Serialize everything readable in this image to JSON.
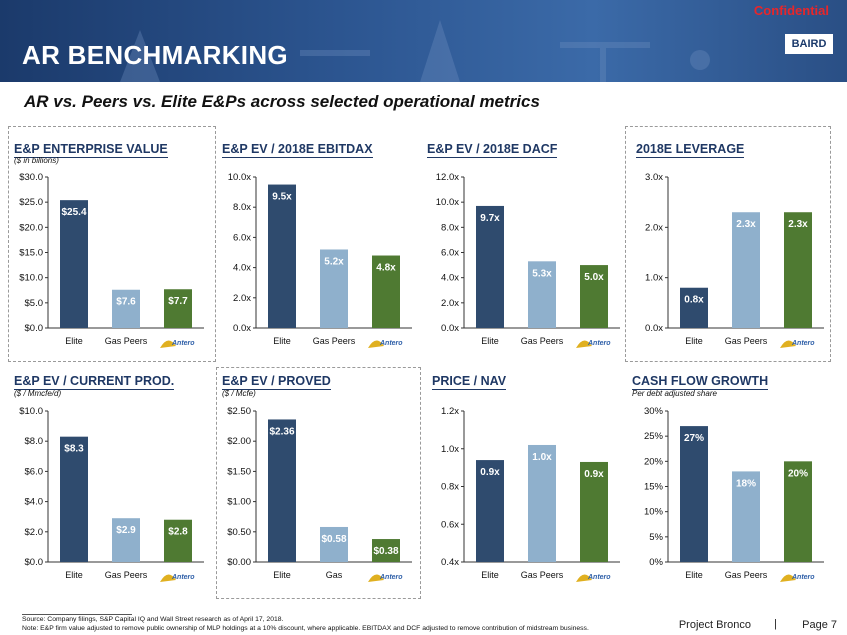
{
  "header": {
    "title": "AR BENCHMARKING",
    "confidential": "Confidential",
    "logo": "BAIRD",
    "subtitle": "AR vs. Peers vs. Elite E&Ps across selected operational metrics"
  },
  "colors": {
    "elite": "#2f4b6e",
    "peers": "#8fb0cc",
    "antero": "#4f7a32",
    "title": "#1f3864"
  },
  "antero_label": "Antero",
  "chart_data": [
    {
      "type": "bar",
      "title": "E&P ENTERPRISE VALUE",
      "subtitle": "($ in billions)",
      "categories": [
        "Elite",
        "Gas Peers",
        "Antero"
      ],
      "values": [
        25.4,
        7.6,
        7.7
      ],
      "value_labels": [
        "$25.4",
        "$7.6",
        "$7.7"
      ],
      "yticks": [
        "$0.0",
        "$5.0",
        "$10.0",
        "$15.0",
        "$20.0",
        "$25.0",
        "$30.0"
      ],
      "ylim": [
        0,
        30
      ]
    },
    {
      "type": "bar",
      "title": "E&P EV / 2018E EBITDAX",
      "subtitle": "",
      "categories": [
        "Elite",
        "Gas Peers",
        "Antero"
      ],
      "values": [
        9.5,
        5.2,
        4.8
      ],
      "value_labels": [
        "9.5x",
        "5.2x",
        "4.8x"
      ],
      "yticks": [
        "0.0x",
        "2.0x",
        "4.0x",
        "6.0x",
        "8.0x",
        "10.0x"
      ],
      "ylim": [
        0,
        10
      ]
    },
    {
      "type": "bar",
      "title": "E&P EV / 2018E DACF",
      "subtitle": "",
      "categories": [
        "Elite",
        "Gas Peers",
        "Antero"
      ],
      "values": [
        9.7,
        5.3,
        5.0
      ],
      "value_labels": [
        "9.7x",
        "5.3x",
        "5.0x"
      ],
      "yticks": [
        "0.0x",
        "2.0x",
        "4.0x",
        "6.0x",
        "8.0x",
        "10.0x",
        "12.0x"
      ],
      "ylim": [
        0,
        12
      ]
    },
    {
      "type": "bar",
      "title": "2018E LEVERAGE",
      "subtitle": "",
      "categories": [
        "Elite",
        "Gas Peers",
        "Antero"
      ],
      "values": [
        0.8,
        2.3,
        2.3
      ],
      "value_labels": [
        "0.8x",
        "2.3x",
        "2.3x"
      ],
      "yticks": [
        "0.0x",
        "1.0x",
        "2.0x",
        "3.0x"
      ],
      "ylim": [
        0,
        3
      ]
    },
    {
      "type": "bar",
      "title": "E&P EV / CURRENT PROD.",
      "subtitle": "($ / Mmcfe/d)",
      "categories": [
        "Elite",
        "Gas Peers",
        "Antero"
      ],
      "values": [
        8.3,
        2.9,
        2.8
      ],
      "value_labels": [
        "$8.3",
        "$2.9",
        "$2.8"
      ],
      "yticks": [
        "$0.0",
        "$2.0",
        "$4.0",
        "$6.0",
        "$8.0",
        "$10.0"
      ],
      "ylim": [
        0,
        10
      ]
    },
    {
      "type": "bar",
      "title": "E&P EV / PROVED",
      "subtitle": "($ / Mcfe)",
      "categories": [
        "Elite",
        "Gas",
        "Antero"
      ],
      "values": [
        2.36,
        0.58,
        0.38
      ],
      "value_labels": [
        "$2.36",
        "$0.58",
        "$0.38"
      ],
      "yticks": [
        "$0.00",
        "$0.50",
        "$1.00",
        "$1.50",
        "$2.00",
        "$2.50"
      ],
      "ylim": [
        0,
        2.5
      ]
    },
    {
      "type": "bar",
      "title": "PRICE / NAV",
      "subtitle": "",
      "categories": [
        "Elite",
        "Gas Peers",
        "Antero"
      ],
      "values": [
        0.94,
        1.02,
        0.93
      ],
      "value_labels": [
        "0.9x",
        "1.0x",
        "0.9x"
      ],
      "yticks": [
        "0.4x",
        "0.6x",
        "0.8x",
        "1.0x",
        "1.2x"
      ],
      "ylim": [
        0.4,
        1.2
      ]
    },
    {
      "type": "bar",
      "title": "CASH FLOW GROWTH",
      "subtitle": "Per debt adjusted share",
      "categories": [
        "Elite",
        "Gas Peers",
        "Antero"
      ],
      "values": [
        27,
        18,
        20
      ],
      "value_labels": [
        "27%",
        "18%",
        "20%"
      ],
      "yticks": [
        "0%",
        "5%",
        "10%",
        "15%",
        "20%",
        "25%",
        "30%"
      ],
      "ylim": [
        0,
        30
      ]
    }
  ],
  "footer": {
    "source": "Source: Company filings, S&P Capital IQ and Wall Street research as of April 17, 2018.",
    "note": "Note: E&P firm value adjusted to remove public ownership of MLP holdings at a 10% discount, where applicable. EBITDAX and DCF adjusted to remove contribution of midstream business.",
    "project": "Project Bronco",
    "separator": "|",
    "page": "Page 7"
  }
}
